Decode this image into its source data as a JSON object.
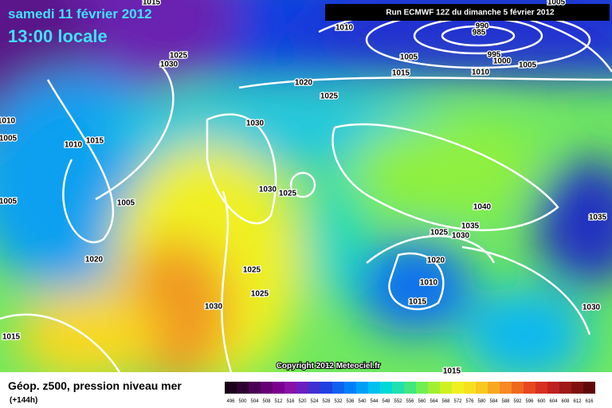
{
  "header": {
    "date": "samedi 11 février 2012",
    "time": "13:00 locale",
    "run": "Run ECMWF 12Z du dimanche 5 février 2012"
  },
  "footer": {
    "title": "Géop. z500, pression niveau mer",
    "lead": "(+144h)",
    "copyright": "Copyright 2012 Meteociel.fr"
  },
  "legend": {
    "values": [
      496,
      500,
      504,
      508,
      512,
      516,
      520,
      524,
      528,
      532,
      536,
      540,
      544,
      548,
      552,
      556,
      560,
      564,
      568,
      572,
      576,
      580,
      584,
      588,
      592,
      596,
      600,
      604,
      608,
      612,
      616
    ],
    "colors": [
      "#1a0018",
      "#2d0030",
      "#4a0055",
      "#650075",
      "#7a0090",
      "#8a10a8",
      "#6a20c0",
      "#4030d0",
      "#2040e0",
      "#1060f0",
      "#0080f8",
      "#00a0f8",
      "#00c0f0",
      "#00d8d8",
      "#20e0b0",
      "#40e880",
      "#70f050",
      "#a0f030",
      "#d0f020",
      "#f0f020",
      "#f8e020",
      "#f8c820",
      "#f8a820",
      "#f88820",
      "#f06820",
      "#e84820",
      "#d83020",
      "#c02020",
      "#a01818",
      "#801010",
      "#600808"
    ]
  },
  "isobars": [
    "1015",
    "1010",
    "990",
    "985",
    "1025",
    "1030",
    "1005",
    "995",
    "1000",
    "1005",
    "1015",
    "1010",
    "1020",
    "1025",
    "1030",
    "1010",
    "1005",
    "1010",
    "1015",
    "1030",
    "1025",
    "1005",
    "1005",
    "1040",
    "1035",
    "1035",
    "1025",
    "1030",
    "1020",
    "1025",
    "1020",
    "1025",
    "1010",
    "1015",
    "1030",
    "1030",
    "1015",
    "1015",
    "1005"
  ]
}
